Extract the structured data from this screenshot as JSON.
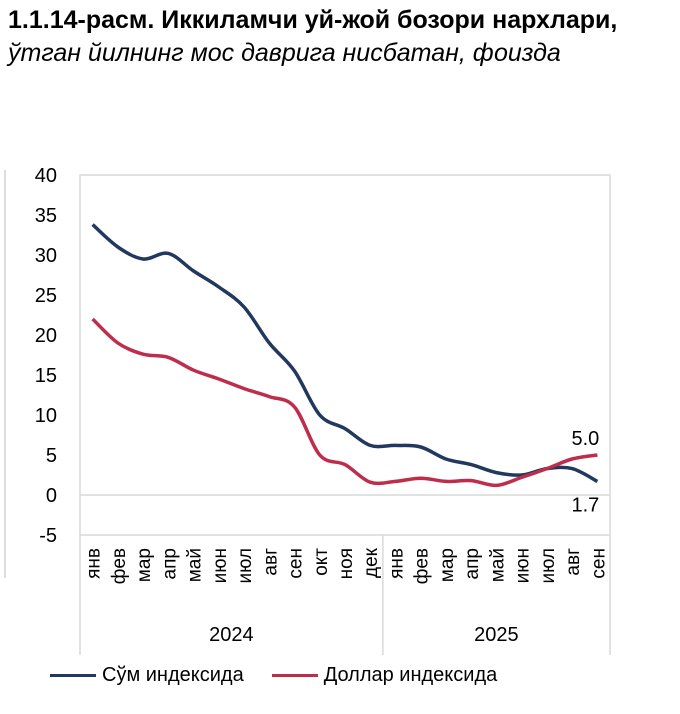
{
  "title": {
    "bold": "1.1.14-расм. Иккиламчи уй-жой бозори нархлари,",
    "italic": "ўтган йилнинг мос даврига нисбатан, фоизда"
  },
  "chart_data": {
    "type": "line",
    "title": "1.1.14-расм. Иккиламчи уй-жой бозори нархлари, ўтган йилнинг мос даврига нисбатан, фоизда",
    "categories": [
      "янв",
      "фев",
      "мар",
      "апр",
      "май",
      "июн",
      "июл",
      "авг",
      "сен",
      "окт",
      "ноя",
      "дек",
      "янв",
      "фев",
      "мар",
      "апр",
      "май",
      "июн",
      "июл",
      "авг",
      "сен"
    ],
    "year_groups": [
      {
        "label": "2024",
        "count": 12
      },
      {
        "label": "2025",
        "count": 9
      }
    ],
    "series": [
      {
        "name": "Сўм индексида",
        "color": "#22385e",
        "values": [
          33.8,
          31.0,
          29.5,
          30.2,
          28.0,
          26.0,
          23.5,
          19.0,
          15.5,
          10.0,
          8.3,
          6.2,
          6.2,
          6.0,
          4.5,
          3.8,
          2.8,
          2.5,
          3.3,
          3.3,
          1.7
        ]
      },
      {
        "name": "Доллар индексида",
        "color": "#be2d4c",
        "values": [
          22.0,
          19.0,
          17.6,
          17.2,
          15.6,
          14.5,
          13.3,
          12.3,
          11.0,
          5.0,
          3.8,
          1.6,
          1.7,
          2.1,
          1.7,
          1.8,
          1.2,
          2.2,
          3.3,
          4.5,
          5.0
        ]
      }
    ],
    "data_labels": [
      {
        "series": 1,
        "index": 20,
        "text": "5.0"
      },
      {
        "series": 0,
        "index": 20,
        "text": "1.7"
      }
    ],
    "yticks": [
      "40",
      "35",
      "30",
      "25",
      "20",
      "15",
      "10",
      "5",
      "0",
      "-5"
    ],
    "ylim": [
      -5,
      40
    ],
    "legend": "bottom"
  }
}
